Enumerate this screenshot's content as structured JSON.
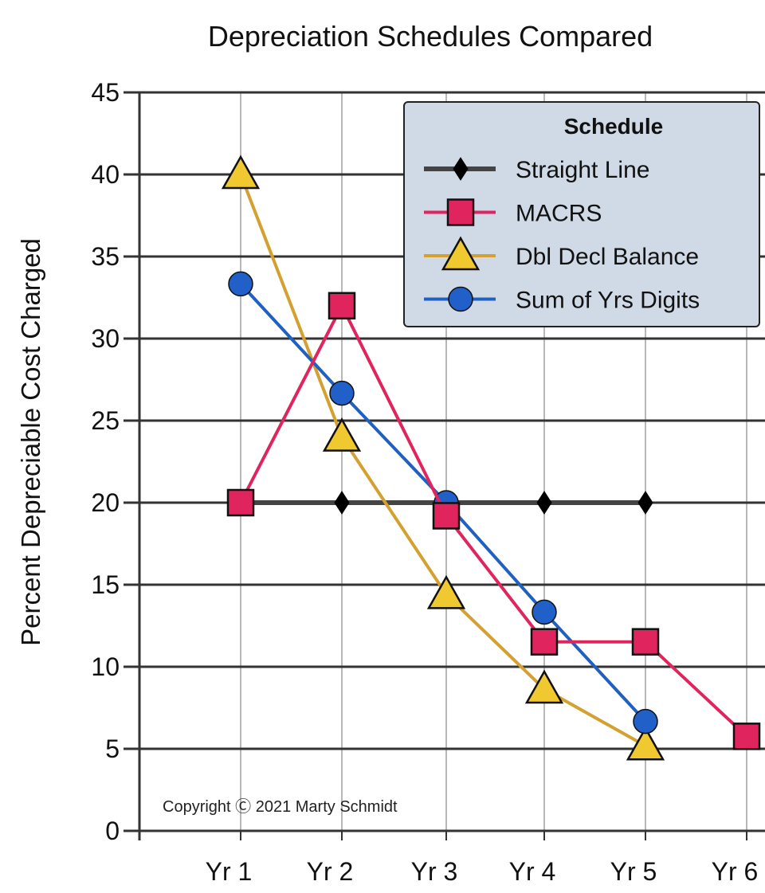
{
  "chart_data": {
    "type": "line",
    "title": "Depreciation Schedules Compared",
    "xlabel": "",
    "ylabel": "Percent Depreciable Cost Charged",
    "categories": [
      "Yr 1",
      "Yr 2",
      "Yr 3",
      "Yr 4",
      "Yr 5",
      "Yr 6"
    ],
    "ylim": [
      0,
      45
    ],
    "yticks": [
      "0",
      "5",
      "10",
      "15",
      "20",
      "25",
      "30",
      "35",
      "40",
      "45"
    ],
    "grid": true,
    "legend": {
      "title": "Schedule",
      "placement": "top-right"
    },
    "series": [
      {
        "name": "Straight Line",
        "marker": "diamond",
        "color": "#444444",
        "fill": "#000000",
        "values": [
          20,
          20,
          20,
          20,
          20,
          null
        ]
      },
      {
        "name": "MACRS",
        "marker": "square",
        "color": "#e0245e",
        "fill": "#e0245e",
        "values": [
          20,
          32,
          19.2,
          11.52,
          11.52,
          5.76
        ]
      },
      {
        "name": "Dbl Decl Balance",
        "marker": "triangle",
        "color": "#d4a030",
        "fill": "#f0c830",
        "values": [
          40,
          24,
          14.4,
          8.64,
          5.18,
          null
        ]
      },
      {
        "name": "Sum of Yrs Digits",
        "marker": "circle",
        "color": "#2060c0",
        "fill": "#2060c8",
        "values": [
          33.33,
          26.67,
          20,
          13.33,
          6.67,
          null
        ]
      }
    ],
    "annotation": "Copyright Ⓒ 2021 Marty Schmidt"
  }
}
